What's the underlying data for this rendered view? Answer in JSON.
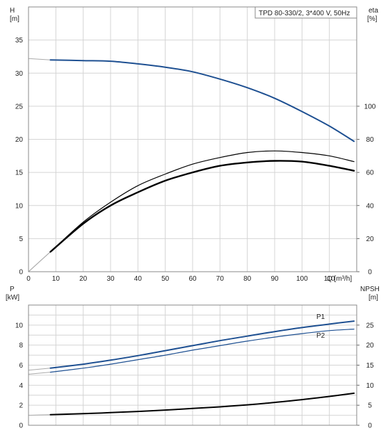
{
  "chart_data": [
    {
      "type": "line",
      "title": "TPD 80-330/2, 3*400 V, 50Hz",
      "xlabel": "Q [m³/h]",
      "x_ticks": [
        "0",
        "10",
        "20",
        "30",
        "40",
        "50",
        "60",
        "70",
        "80",
        "90",
        "100",
        "110"
      ],
      "xlim": [
        0,
        120
      ],
      "left_axis": {
        "label_top": "H",
        "label_unit": "[m]",
        "ylim": [
          0,
          40
        ],
        "ticks": [
          "0",
          "5",
          "10",
          "15",
          "20",
          "25",
          "30",
          "35"
        ]
      },
      "right_axis": {
        "label_top": "eta",
        "label_unit": "[%]",
        "ylim": [
          0,
          160
        ],
        "ticks": [
          "0",
          "20",
          "40",
          "60",
          "80",
          "100"
        ]
      },
      "grid": true,
      "series": [
        {
          "axis": "left",
          "color": "#1d4f91",
          "width": 2,
          "x": [
            0,
            8,
            20,
            30,
            40,
            50,
            60,
            70,
            80,
            90,
            100,
            110,
            119
          ],
          "values": [
            32.2,
            32.0,
            31.9,
            31.8,
            31.4,
            30.9,
            30.2,
            29.1,
            27.8,
            26.2,
            24.2,
            22.0,
            19.7
          ]
        },
        {
          "axis": "right",
          "color": "#000000",
          "width": 1.2,
          "x": [
            0,
            8,
            20,
            30,
            40,
            50,
            60,
            70,
            80,
            90,
            100,
            110,
            119
          ],
          "values": [
            0,
            12,
            30,
            42,
            52,
            59,
            65,
            69,
            72,
            73,
            72,
            70,
            66.5
          ]
        },
        {
          "axis": "right",
          "color": "#000000",
          "width": 2.4,
          "x": [
            0,
            8,
            20,
            30,
            40,
            50,
            60,
            70,
            80,
            90,
            100,
            110,
            119
          ],
          "values": [
            0,
            12,
            29,
            40,
            48,
            55,
            60,
            64,
            66,
            67,
            66.5,
            64,
            61
          ]
        }
      ]
    },
    {
      "type": "line",
      "xlim": [
        0,
        120
      ],
      "left_axis": {
        "label_top": "P",
        "label_unit": "[kW]",
        "ylim": [
          0,
          12
        ],
        "ticks": [
          "0",
          "2",
          "4",
          "6",
          "8",
          "10"
        ]
      },
      "right_axis": {
        "label_top": "NPSH",
        "label_unit": "[m]",
        "ylim": [
          0,
          30
        ],
        "ticks": [
          "0",
          "5",
          "10",
          "15",
          "20",
          "25"
        ]
      },
      "grid": true,
      "series": [
        {
          "name": "P1",
          "axis": "left",
          "color": "#1d4f91",
          "width": 2,
          "x": [
            0,
            8,
            20,
            30,
            40,
            50,
            60,
            70,
            80,
            90,
            100,
            110,
            119
          ],
          "values": [
            5.5,
            5.7,
            6.1,
            6.5,
            6.95,
            7.45,
            7.95,
            8.45,
            8.9,
            9.35,
            9.75,
            10.1,
            10.4
          ]
        },
        {
          "name": "P2",
          "axis": "left",
          "color": "#1d4f91",
          "width": 1.2,
          "x": [
            0,
            8,
            20,
            30,
            40,
            50,
            60,
            70,
            80,
            90,
            100,
            110,
            119
          ],
          "values": [
            5.1,
            5.3,
            5.7,
            6.1,
            6.55,
            7.0,
            7.5,
            7.95,
            8.4,
            8.8,
            9.15,
            9.45,
            9.6
          ]
        },
        {
          "axis": "right",
          "color": "#000000",
          "width": 2,
          "x": [
            0,
            8,
            20,
            30,
            40,
            50,
            60,
            70,
            80,
            90,
            100,
            110,
            119
          ],
          "values": [
            2.5,
            2.65,
            2.9,
            3.15,
            3.45,
            3.8,
            4.2,
            4.6,
            5.1,
            5.7,
            6.4,
            7.2,
            8.0
          ]
        }
      ]
    }
  ]
}
